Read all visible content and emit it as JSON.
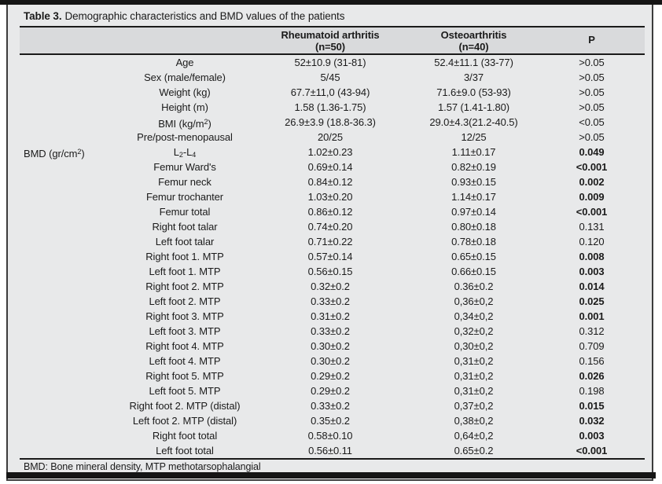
{
  "title": {
    "prefix": "Table 3.",
    "text": "Demographic characteristics and BMD values of the patients"
  },
  "header": {
    "rheumatoid": {
      "line1": "Rheumatoid arthritis",
      "line2": "(n=50)"
    },
    "osteoarthritis": {
      "line1": "Osteoarthritis",
      "line2": "(n=40)"
    },
    "p": "P"
  },
  "rows": [
    {
      "group": "",
      "label": "Age",
      "ra": "52±10.9 (31-81)",
      "oa": "52.4±11.1 (33-77)",
      "p": ">0.05",
      "p_bold": false
    },
    {
      "group": "",
      "label": "Sex (male/female)",
      "ra": "5/45",
      "oa": "3/37",
      "p": ">0.05",
      "p_bold": false
    },
    {
      "group": "",
      "label": "Weight (kg)",
      "ra": "67.7±11,0 (43-94)",
      "oa": "71.6±9.0 (53-93)",
      "p": ">0.05",
      "p_bold": false
    },
    {
      "group": "",
      "label": "Height (m)",
      "ra": "1.58 (1.36-1.75)",
      "oa": "1.57 (1.41-1.80)",
      "p": ">0.05",
      "p_bold": false
    },
    {
      "group": "",
      "label": [
        {
          "t": "BMI (kg/m"
        },
        {
          "t": "2",
          "sup": true
        },
        {
          "t": ")"
        }
      ],
      "ra": "26.9±3.9 (18.8-36.3)",
      "oa": "29.0±4.3(21.2-40.5)",
      "p": "<0.05",
      "p_bold": false
    },
    {
      "group": "",
      "label": "Pre/post-menopausal",
      "ra": "20/25",
      "oa": "12/25",
      "p": ">0.05",
      "p_bold": false
    },
    {
      "group": [
        {
          "t": "BMD (gr/cm"
        },
        {
          "t": "2",
          "sup": true
        },
        {
          "t": ")"
        }
      ],
      "label": [
        {
          "t": "L"
        },
        {
          "t": "2",
          "sub": true
        },
        {
          "t": "-L"
        },
        {
          "t": "4",
          "sub": true
        }
      ],
      "ra": "1.02±0.23",
      "oa": "1.11±0.17",
      "p": "0.049",
      "p_bold": true
    },
    {
      "group": "",
      "label": "Femur Ward's",
      "ra": "0.69±0.14",
      "oa": "0.82±0.19",
      "p": "<0.001",
      "p_bold": true
    },
    {
      "group": "",
      "label": "Femur neck",
      "ra": "0.84±0.12",
      "oa": "0.93±0.15",
      "p": "0.002",
      "p_bold": true
    },
    {
      "group": "",
      "label": "Femur trochanter",
      "ra": "1.03±0.20",
      "oa": "1.14±0.17",
      "p": "0.009",
      "p_bold": true
    },
    {
      "group": "",
      "label": "Femur total",
      "ra": "0.86±0.12",
      "oa": "0.97±0.14",
      "p": "<0.001",
      "p_bold": true
    },
    {
      "group": "",
      "label": "Right foot talar",
      "ra": "0.74±0.20",
      "oa": "0.80±0.18",
      "p": "0.131",
      "p_bold": false
    },
    {
      "group": "",
      "label": "Left foot talar",
      "ra": "0.71±0.22",
      "oa": "0.78±0.18",
      "p": "0.120",
      "p_bold": false
    },
    {
      "group": "",
      "label": "Right foot 1. MTP",
      "ra": "0.57±0.14",
      "oa": "0.65±0.15",
      "p": "0.008",
      "p_bold": true
    },
    {
      "group": "",
      "label": "Left foot 1. MTP",
      "ra": "0.56±0.15",
      "oa": "0.66±0.15",
      "p": "0.003",
      "p_bold": true
    },
    {
      "group": "",
      "label": "Right foot 2. MTP",
      "ra": "0.32±0.2",
      "oa": "0.36±0.2",
      "p": "0.014",
      "p_bold": true
    },
    {
      "group": "",
      "label": "Left foot 2. MTP",
      "ra": "0.33±0.2",
      "oa": "0,36±0,2",
      "p": "0.025",
      "p_bold": true
    },
    {
      "group": "",
      "label": "Right foot 3. MTP",
      "ra": "0.31±0.2",
      "oa": "0,34±0,2",
      "p": "0.001",
      "p_bold": true
    },
    {
      "group": "",
      "label": "Left foot 3. MTP",
      "ra": "0.33±0.2",
      "oa": "0,32±0,2",
      "p": "0.312",
      "p_bold": false
    },
    {
      "group": "",
      "label": "Right foot 4. MTP",
      "ra": "0.30±0.2",
      "oa": "0,30±0,2",
      "p": "0.709",
      "p_bold": false
    },
    {
      "group": "",
      "label": "Left foot 4. MTP",
      "ra": "0.30±0.2",
      "oa": "0,31±0,2",
      "p": "0.156",
      "p_bold": false
    },
    {
      "group": "",
      "label": "Right foot 5. MTP",
      "ra": "0.29±0.2",
      "oa": "0,31±0,2",
      "p": "0.026",
      "p_bold": true
    },
    {
      "group": "",
      "label": "Left foot 5. MTP",
      "ra": "0.29±0.2",
      "oa": "0,31±0,2",
      "p": "0.198",
      "p_bold": false
    },
    {
      "group": "",
      "label": "Right foot 2. MTP (distal)",
      "ra": "0.33±0.2",
      "oa": "0,37±0,2",
      "p": "0.015",
      "p_bold": true
    },
    {
      "group": "",
      "label": "Left foot 2. MTP (distal)",
      "ra": "0.35±0.2",
      "oa": "0,38±0,2",
      "p": "0.032",
      "p_bold": true
    },
    {
      "group": "",
      "label": "Right foot total",
      "ra": "0.58±0.10",
      "oa": "0,64±0,2",
      "p": "0.003",
      "p_bold": true
    },
    {
      "group": "",
      "label": "Left foot total",
      "ra": "0.56±0.11",
      "oa": "0.65±0.2",
      "p": "<0.001",
      "p_bold": true
    }
  ],
  "footnote": "BMD: Bone mineral density, MTP methotarsophalangial",
  "colors": {
    "page_bg": "#ffffff",
    "table_bg": "#e8e9ea",
    "header_bg": "#d9dadc",
    "rule": "#1a1a1a",
    "frame_border": "#3c3c3c",
    "text": "#1b1b1b"
  }
}
